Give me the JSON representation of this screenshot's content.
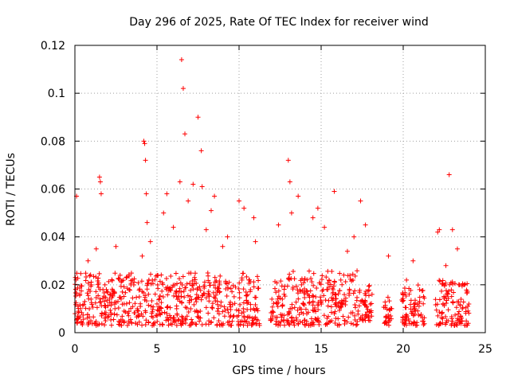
{
  "chart_data": {
    "type": "scatter",
    "title": "Day 296 of 2025, Rate Of TEC Index for receiver wind",
    "xlabel": "GPS time / hours",
    "ylabel": "ROTI / TECUs",
    "xlim": [
      0,
      25
    ],
    "ylim": [
      0,
      0.12
    ],
    "x_ticks": [
      "0",
      "5",
      "10",
      "15",
      "20",
      "25"
    ],
    "y_ticks": [
      "0",
      "0.02",
      "0.04",
      "0.06",
      "0.08",
      "0.1",
      "0.12"
    ],
    "grid": true,
    "marker": "+",
    "color": "#ff0000",
    "series": [
      {
        "x": [
          0.1,
          0.3,
          0.6,
          0.8,
          1.0,
          1.3,
          1.5,
          1.55,
          1.6,
          2.1,
          2.5,
          3.0,
          3.3,
          3.5,
          3.8,
          4.1,
          4.2,
          4.25,
          4.3,
          4.35,
          4.4,
          4.6,
          5.0,
          5.4,
          5.6,
          5.8,
          6.0,
          6.2,
          6.4,
          6.5,
          6.6,
          6.7,
          6.9,
          7.2,
          7.5,
          7.7,
          7.75,
          8.0,
          8.3,
          8.5,
          8.8,
          9.0,
          9.3,
          9.7,
          10.0,
          10.3,
          10.6,
          10.9,
          11.0,
          12.0,
          12.4,
          13.0,
          13.1,
          13.2,
          13.6,
          14.0,
          14.5,
          14.8,
          15.2,
          15.4,
          15.8,
          16.2,
          16.6,
          17.0,
          17.4,
          17.7,
          18.1,
          19.1,
          19.3,
          20.2,
          20.6,
          21.0,
          22.1,
          22.2,
          22.6,
          22.8,
          23.0,
          23.3,
          23.6
        ],
        "y": [
          0.057,
          0.016,
          0.013,
          0.03,
          0.02,
          0.035,
          0.065,
          0.063,
          0.058,
          0.014,
          0.036,
          0.012,
          0.018,
          0.022,
          0.01,
          0.032,
          0.08,
          0.079,
          0.072,
          0.058,
          0.046,
          0.038,
          0.012,
          0.05,
          0.058,
          0.018,
          0.044,
          0.01,
          0.063,
          0.114,
          0.102,
          0.083,
          0.055,
          0.062,
          0.09,
          0.076,
          0.061,
          0.043,
          0.051,
          0.057,
          0.02,
          0.036,
          0.04,
          0.015,
          0.055,
          0.052,
          0.022,
          0.048,
          0.038,
          0.014,
          0.045,
          0.072,
          0.063,
          0.05,
          0.057,
          0.022,
          0.048,
          0.052,
          0.044,
          0.018,
          0.059,
          0.022,
          0.034,
          0.04,
          0.055,
          0.045,
          0.016,
          0.032,
          0.01,
          0.022,
          0.03,
          0.018,
          0.042,
          0.043,
          0.028,
          0.066,
          0.043,
          0.035,
          0.01
        ]
      }
    ],
    "dense_bands": [
      {
        "from": 0.0,
        "to": 11.3,
        "low": 0.003,
        "high": 0.025
      },
      {
        "from": 11.9,
        "to": 12.8,
        "low": 0.003,
        "high": 0.022
      },
      {
        "from": 12.9,
        "to": 17.2,
        "low": 0.003,
        "high": 0.026
      },
      {
        "from": 17.2,
        "to": 18.1,
        "low": 0.005,
        "high": 0.02
      },
      {
        "from": 18.8,
        "to": 19.3,
        "low": 0.003,
        "high": 0.015
      },
      {
        "from": 19.9,
        "to": 21.3,
        "low": 0.003,
        "high": 0.02
      },
      {
        "from": 21.9,
        "to": 24.0,
        "low": 0.003,
        "high": 0.022
      }
    ]
  }
}
